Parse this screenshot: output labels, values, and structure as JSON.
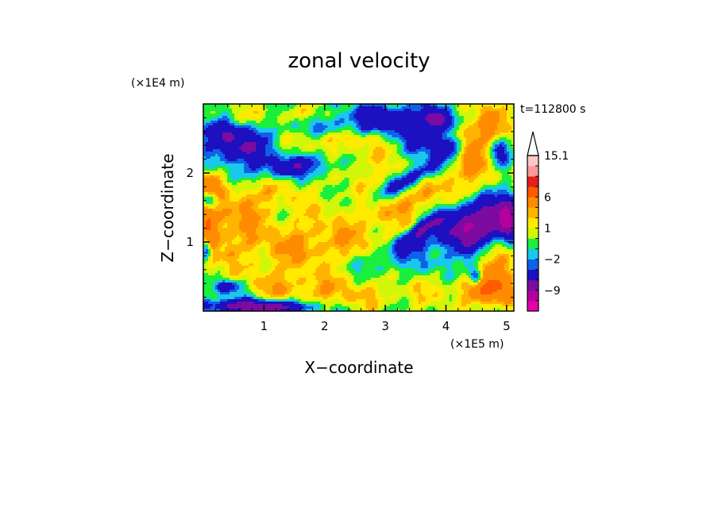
{
  "chart_data": {
    "type": "heatmap",
    "title": "zonal velocity",
    "xlabel": "X−coordinate",
    "ylabel": "Z−coordinate",
    "x_unit": "(×1E5 m)",
    "y_unit": "(×1E4 m)",
    "time_label": "t=112800 s",
    "xlim": [
      0,
      5.12
    ],
    "ylim": [
      0,
      3.0
    ],
    "xticks": [
      1,
      2,
      3,
      4,
      5
    ],
    "yticks": [
      1,
      2
    ],
    "xtick_labels": [
      "1",
      "2",
      "3",
      "4",
      "5"
    ],
    "ytick_labels": [
      "1",
      "2"
    ],
    "colorbar": {
      "levels": [
        -15,
        -12,
        -9,
        -6,
        -3,
        -2,
        -1,
        0,
        1,
        2,
        3,
        6,
        9,
        12,
        15.1
      ],
      "colors": [
        "#e600a8",
        "#b4009f",
        "#7d0ba0",
        "#1d10c0",
        "#1060e8",
        "#19c8ec",
        "#1aef3c",
        "#d2f60a",
        "#ffea00",
        "#ffb400",
        "#ff8c00",
        "#ff5a00",
        "#e61e1e",
        "#ff9a9a",
        "#ffc8c8"
      ],
      "labels": [
        {
          "value": 15.1,
          "text": "15.1"
        },
        {
          "value": 6,
          "text": "6"
        },
        {
          "value": 1,
          "text": "1"
        },
        {
          "value": -2,
          "text": "−2"
        },
        {
          "value": -9,
          "text": "−9"
        }
      ],
      "extend": "max"
    },
    "field": {
      "background": 0,
      "features": [
        {
          "cx": 2.0,
          "cz": 2.7,
          "sx": 1.4,
          "sz": 0.2,
          "amp": -2.3,
          "tilt": 0.0
        },
        {
          "cx": 3.3,
          "cz": 2.8,
          "sx": 0.8,
          "sz": 0.15,
          "amp": -3.0,
          "tilt": 0.0
        },
        {
          "cx": 0.6,
          "cz": 2.35,
          "sx": 0.3,
          "sz": 0.15,
          "amp": -6.5,
          "tilt": 0.0
        },
        {
          "cx": 0.3,
          "cz": 2.6,
          "sx": 0.25,
          "sz": 0.12,
          "amp": -4.0,
          "tilt": 0.0
        },
        {
          "cx": 1.5,
          "cz": 2.1,
          "sx": 0.55,
          "sz": 0.12,
          "amp": -5.0,
          "tilt": 0.1
        },
        {
          "cx": 2.5,
          "cz": 2.3,
          "sx": 0.8,
          "sz": 0.22,
          "amp": 2.2,
          "tilt": -0.2
        },
        {
          "cx": 2.3,
          "cz": 2.5,
          "sx": 0.5,
          "sz": 0.08,
          "amp": 1.5,
          "tilt": 0.0
        },
        {
          "cx": 3.6,
          "cz": 2.3,
          "sx": 0.35,
          "sz": 0.35,
          "amp": -2.5,
          "tilt": 0.0
        },
        {
          "cx": 4.4,
          "cz": 2.45,
          "sx": 0.35,
          "sz": 0.3,
          "amp": 4.5,
          "tilt": 0.0
        },
        {
          "cx": 4.0,
          "cz": 2.4,
          "sx": 0.2,
          "sz": 0.12,
          "amp": -6.5,
          "tilt": 0.0
        },
        {
          "cx": 4.75,
          "cz": 2.8,
          "sx": 0.25,
          "sz": 0.18,
          "amp": 2.5,
          "tilt": 0.0
        },
        {
          "cx": 3.9,
          "cz": 2.75,
          "sx": 0.12,
          "sz": 0.1,
          "amp": -6.0,
          "tilt": 0.0
        },
        {
          "cx": 4.85,
          "cz": 2.3,
          "sx": 0.15,
          "sz": 0.15,
          "amp": -5.0,
          "tilt": 0.0
        },
        {
          "cx": 3.4,
          "cz": 1.9,
          "sx": 0.55,
          "sz": 0.08,
          "amp": -6.0,
          "tilt": 0.45
        },
        {
          "cx": 3.0,
          "cz": 1.5,
          "sx": 1.1,
          "sz": 0.25,
          "amp": 2.6,
          "tilt": 0.45
        },
        {
          "cx": 3.5,
          "cz": 1.1,
          "sx": 0.4,
          "sz": 0.1,
          "amp": -5.5,
          "tilt": 0.6
        },
        {
          "cx": 4.5,
          "cz": 1.25,
          "sx": 0.5,
          "sz": 0.25,
          "amp": -9.0,
          "tilt": 0.2
        },
        {
          "cx": 4.0,
          "cz": 1.6,
          "sx": 0.5,
          "sz": 0.2,
          "amp": 1.8,
          "tilt": 0.4
        },
        {
          "cx": 4.9,
          "cz": 0.7,
          "sx": 0.22,
          "sz": 0.3,
          "amp": 4.5,
          "tilt": 0.0
        },
        {
          "cx": 5.0,
          "cz": 1.3,
          "sx": 0.12,
          "sz": 0.25,
          "amp": -6.0,
          "tilt": 0.0
        },
        {
          "cx": 4.7,
          "cz": 0.3,
          "sx": 0.3,
          "sz": 0.15,
          "amp": 5.0,
          "tilt": 0.0
        },
        {
          "cx": 3.95,
          "cz": 0.5,
          "sx": 0.6,
          "sz": 0.2,
          "amp": 1.0,
          "tilt": 0.0
        },
        {
          "cx": 2.6,
          "cz": 0.2,
          "sx": 1.0,
          "sz": 0.12,
          "amp": 1.2,
          "tilt": 0.0
        },
        {
          "cx": 1.6,
          "cz": 0.35,
          "sx": 0.8,
          "sz": 0.18,
          "amp": 2.2,
          "tilt": 0.0
        },
        {
          "cx": 0.6,
          "cz": 0.08,
          "sx": 0.7,
          "sz": 0.08,
          "amp": -6.0,
          "tilt": 0.0
        },
        {
          "cx": 0.4,
          "cz": 0.35,
          "sx": 0.2,
          "sz": 0.08,
          "amp": -5.0,
          "tilt": 0.0
        },
        {
          "cx": 0.1,
          "cz": 1.2,
          "sx": 0.12,
          "sz": 0.35,
          "amp": 5.0,
          "tilt": 0.0
        },
        {
          "cx": 0.05,
          "cz": 0.9,
          "sx": 0.06,
          "sz": 0.12,
          "amp": -7.0,
          "tilt": 0.0
        },
        {
          "cx": 0.1,
          "cz": 1.85,
          "sx": 0.12,
          "sz": 0.1,
          "amp": 4.0,
          "tilt": 0.0
        },
        {
          "cx": 0.1,
          "cz": 1.6,
          "sx": 0.1,
          "sz": 0.08,
          "amp": -6.0,
          "tilt": 0.0
        },
        {
          "cx": 1.5,
          "cz": 1.0,
          "sx": 0.9,
          "sz": 0.25,
          "amp": 2.4,
          "tilt": 0.1
        },
        {
          "cx": 0.9,
          "cz": 1.7,
          "sx": 0.6,
          "sz": 0.2,
          "amp": 1.8,
          "tilt": 0.0
        },
        {
          "cx": 0.55,
          "cz": 1.3,
          "sx": 0.35,
          "sz": 0.25,
          "amp": 2.5,
          "tilt": 0.3
        },
        {
          "cx": 2.4,
          "cz": 1.2,
          "sx": 0.5,
          "sz": 0.15,
          "amp": -1.2,
          "tilt": 0.2
        },
        {
          "cx": 3.6,
          "cz": 0.65,
          "sx": 0.8,
          "sz": 0.15,
          "amp": -1.5,
          "tilt": 0.0
        },
        {
          "cx": 4.5,
          "cz": 0.5,
          "sx": 0.08,
          "sz": 0.08,
          "amp": -6.5,
          "tilt": 0.0
        },
        {
          "cx": 1.7,
          "cz": 2.85,
          "sx": 0.35,
          "sz": 0.1,
          "amp": 3.0,
          "tilt": 0.0
        },
        {
          "cx": 0.6,
          "cz": 2.8,
          "sx": 0.4,
          "sz": 0.12,
          "amp": 2.0,
          "tilt": 0.0
        },
        {
          "cx": 1.2,
          "cz": 0.05,
          "sx": 0.4,
          "sz": 0.06,
          "amp": -5.0,
          "tilt": 0.0
        }
      ]
    }
  }
}
